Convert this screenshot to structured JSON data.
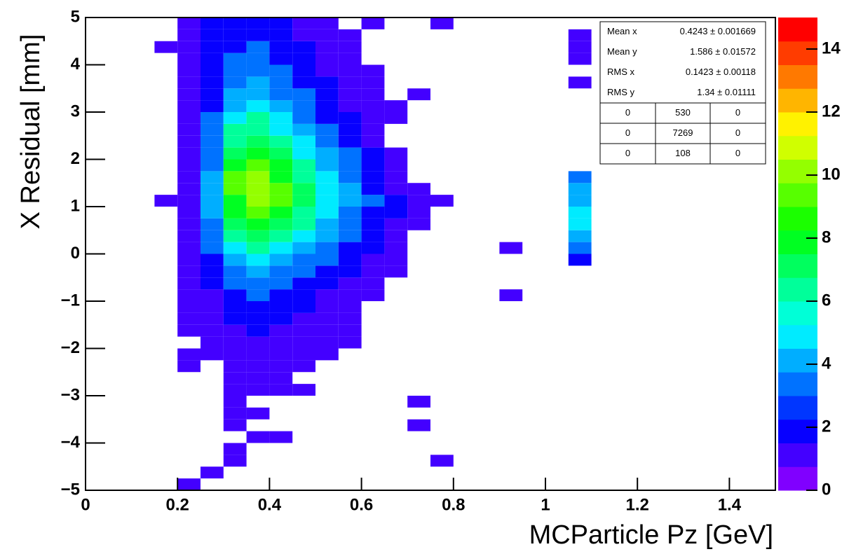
{
  "chart_data": {
    "type": "heatmap",
    "x_label": "MCParticle Pz [GeV]",
    "y_label": "X Residual [mm]",
    "xlim": [
      0,
      1.5
    ],
    "xticks": [
      0,
      0.2,
      0.4,
      0.6,
      0.8,
      1,
      1.2,
      1.4
    ],
    "ylim": [
      -5,
      5
    ],
    "yticks": [
      {
        "value": -5,
        "label": "−5"
      },
      {
        "value": -4,
        "label": "−4"
      },
      {
        "value": -3,
        "label": "−3"
      },
      {
        "value": -2,
        "label": "−2"
      },
      {
        "value": -1,
        "label": "−1"
      },
      0,
      1,
      2,
      3,
      4,
      5
    ],
    "zlim": [
      0,
      15
    ],
    "zticks": [
      0,
      2,
      4,
      6,
      8,
      10,
      12,
      14
    ],
    "xbins": [
      0.1,
      0.15,
      0.2,
      0.25,
      0.3,
      0.35,
      0.4,
      0.45,
      0.5,
      0.55,
      0.6,
      0.65,
      0.7,
      0.75,
      0.8,
      0.85,
      0.9,
      0.95,
      1.0,
      1.05,
      1.1
    ],
    "ybins": [
      -5,
      -4.75,
      -4.5,
      -4.25,
      -4,
      -3.75,
      -3.5,
      -3.25,
      -3,
      -2.75,
      -2.5,
      -2.25,
      -2,
      -1.75,
      -1.5,
      -1.25,
      -1,
      -0.75,
      -0.5,
      -0.25,
      0,
      0.25,
      0.5,
      0.75,
      1,
      1.25,
      1.5,
      1.75,
      2,
      2.25,
      2.5,
      2.75,
      3,
      3.25,
      3.5,
      3.75,
      4,
      4.25,
      4.5,
      4.75,
      5
    ],
    "z": [
      [
        0,
        0,
        1,
        0,
        0,
        0,
        0,
        0,
        0,
        0,
        0,
        0,
        0,
        0,
        0,
        0,
        0,
        0,
        0,
        0
      ],
      [
        0,
        0,
        0,
        1,
        0,
        0,
        0,
        0,
        0,
        0,
        0,
        0,
        0,
        0,
        0,
        0,
        0,
        0,
        0,
        0
      ],
      [
        0,
        0,
        0,
        0,
        1,
        0,
        0,
        0,
        0,
        0,
        0,
        0,
        0,
        1,
        0,
        0,
        0,
        0,
        0,
        0
      ],
      [
        0,
        0,
        0,
        0,
        1,
        0,
        0,
        0,
        0,
        0,
        0,
        0,
        0,
        0,
        0,
        0,
        0,
        0,
        0,
        0
      ],
      [
        0,
        0,
        0,
        0,
        0,
        1,
        1,
        0,
        0,
        0,
        0,
        0,
        0,
        0,
        0,
        0,
        0,
        0,
        0,
        0
      ],
      [
        0,
        0,
        0,
        0,
        1,
        0,
        0,
        0,
        0,
        0,
        0,
        0,
        1,
        0,
        0,
        0,
        0,
        0,
        0,
        0
      ],
      [
        0,
        0,
        0,
        0,
        1,
        1,
        0,
        0,
        0,
        0,
        0,
        0,
        0,
        0,
        0,
        0,
        0,
        0,
        0,
        0
      ],
      [
        0,
        0,
        0,
        0,
        1,
        0,
        0,
        0,
        0,
        0,
        0,
        0,
        1,
        0,
        0,
        0,
        0,
        0,
        0,
        0
      ],
      [
        0,
        0,
        0,
        0,
        1,
        1,
        1,
        1,
        0,
        0,
        0,
        0,
        0,
        0,
        0,
        0,
        0,
        0,
        0,
        0
      ],
      [
        0,
        0,
        0,
        0,
        1,
        1,
        1,
        0,
        0,
        0,
        0,
        0,
        0,
        0,
        0,
        0,
        0,
        0,
        0,
        0
      ],
      [
        0,
        0,
        1,
        0,
        1,
        1,
        1,
        1,
        0,
        0,
        0,
        0,
        0,
        0,
        0,
        0,
        0,
        0,
        0,
        0
      ],
      [
        0,
        0,
        1,
        1,
        1,
        1,
        1,
        1,
        1,
        0,
        0,
        0,
        0,
        0,
        0,
        0,
        0,
        0,
        0,
        0
      ],
      [
        0,
        0,
        0,
        1,
        1,
        1,
        1,
        1,
        1,
        1,
        0,
        0,
        0,
        0,
        0,
        0,
        0,
        0,
        0,
        0
      ],
      [
        0,
        0,
        1,
        1,
        1,
        2,
        1,
        1,
        1,
        1,
        0,
        0,
        0,
        0,
        0,
        0,
        0,
        0,
        0,
        0
      ],
      [
        0,
        0,
        1,
        1,
        2,
        2,
        2,
        1,
        1,
        1,
        0,
        0,
        0,
        0,
        0,
        0,
        0,
        0,
        0,
        0
      ],
      [
        0,
        0,
        1,
        1,
        2,
        2,
        2,
        2,
        1,
        1,
        0,
        0,
        0,
        0,
        0,
        0,
        0,
        0,
        0,
        0
      ],
      [
        0,
        0,
        1,
        1,
        2,
        3,
        2,
        2,
        1,
        1,
        1,
        0,
        0,
        0,
        0,
        0,
        1,
        0,
        0,
        0
      ],
      [
        0,
        0,
        1,
        2,
        3,
        3,
        3,
        2,
        2,
        1,
        1,
        0,
        0,
        0,
        0,
        0,
        0,
        0,
        0,
        0
      ],
      [
        0,
        0,
        1,
        2,
        3,
        4,
        3,
        3,
        2,
        2,
        1,
        1,
        0,
        0,
        0,
        0,
        0,
        0,
        0,
        0
      ],
      [
        0,
        0,
        1,
        2,
        4,
        5,
        4,
        3,
        3,
        2,
        1,
        1,
        0,
        0,
        0,
        0,
        0,
        0,
        0,
        2
      ],
      [
        0,
        0,
        1,
        3,
        5,
        6,
        5,
        4,
        3,
        2,
        2,
        1,
        0,
        0,
        0,
        0,
        1,
        0,
        0,
        3
      ],
      [
        0,
        0,
        1,
        3,
        6,
        7,
        6,
        5,
        4,
        3,
        2,
        1,
        0,
        0,
        0,
        0,
        0,
        0,
        0,
        4
      ],
      [
        0,
        0,
        1,
        3,
        7,
        8,
        7,
        6,
        4,
        3,
        2,
        1,
        1,
        0,
        0,
        0,
        0,
        0,
        0,
        5
      ],
      [
        0,
        0,
        1,
        4,
        8,
        9,
        8,
        6,
        5,
        3,
        2,
        2,
        1,
        0,
        0,
        0,
        0,
        0,
        0,
        5
      ],
      [
        0,
        1,
        1,
        4,
        8,
        10,
        9,
        7,
        5,
        4,
        3,
        2,
        1,
        1,
        0,
        0,
        0,
        0,
        0,
        4
      ],
      [
        0,
        0,
        1,
        4,
        9,
        10,
        9,
        7,
        5,
        4,
        2,
        1,
        1,
        0,
        0,
        0,
        0,
        0,
        0,
        4
      ],
      [
        0,
        0,
        1,
        4,
        9,
        10,
        8,
        6,
        5,
        3,
        2,
        1,
        0,
        0,
        0,
        0,
        0,
        0,
        0,
        3
      ],
      [
        0,
        0,
        1,
        3,
        8,
        9,
        8,
        6,
        4,
        3,
        2,
        1,
        0,
        0,
        0,
        0,
        0,
        0,
        0,
        0
      ],
      [
        0,
        0,
        1,
        3,
        7,
        8,
        7,
        5,
        4,
        3,
        2,
        1,
        0,
        0,
        0,
        0,
        0,
        0,
        0,
        0
      ],
      [
        0,
        0,
        1,
        3,
        6,
        7,
        6,
        5,
        3,
        2,
        1,
        0,
        0,
        0,
        0,
        0,
        0,
        0,
        0,
        0
      ],
      [
        0,
        0,
        1,
        3,
        6,
        6,
        5,
        4,
        3,
        2,
        1,
        0,
        0,
        0,
        0,
        0,
        0,
        0,
        0,
        0
      ],
      [
        0,
        0,
        1,
        3,
        5,
        6,
        5,
        3,
        2,
        2,
        1,
        1,
        0,
        0,
        0,
        0,
        0,
        0,
        0,
        0
      ],
      [
        0,
        0,
        1,
        2,
        4,
        5,
        4,
        3,
        2,
        1,
        1,
        1,
        0,
        0,
        0,
        0,
        0,
        0,
        0,
        0
      ],
      [
        0,
        0,
        1,
        2,
        4,
        4,
        3,
        3,
        2,
        1,
        1,
        0,
        1,
        0,
        0,
        0,
        0,
        0,
        0,
        0
      ],
      [
        0,
        0,
        1,
        2,
        3,
        4,
        3,
        2,
        2,
        1,
        1,
        0,
        0,
        0,
        0,
        0,
        0,
        0,
        0,
        1
      ],
      [
        0,
        0,
        1,
        2,
        3,
        3,
        3,
        2,
        1,
        1,
        1,
        0,
        0,
        0,
        0,
        0,
        0,
        0,
        0,
        0
      ],
      [
        0,
        0,
        1,
        2,
        3,
        3,
        2,
        2,
        1,
        1,
        0,
        0,
        0,
        0,
        0,
        0,
        0,
        0,
        0,
        1
      ],
      [
        0,
        1,
        1,
        2,
        2,
        3,
        2,
        2,
        1,
        1,
        0,
        0,
        0,
        0,
        0,
        0,
        0,
        0,
        0,
        1
      ],
      [
        0,
        0,
        1,
        2,
        2,
        2,
        2,
        1,
        1,
        1,
        0,
        0,
        0,
        0,
        0,
        0,
        0,
        0,
        0,
        1
      ],
      [
        0,
        0,
        1,
        2,
        2,
        2,
        2,
        1,
        1,
        0,
        1,
        0,
        0,
        1,
        0,
        0,
        0,
        0,
        0,
        0
      ]
    ],
    "stats": [
      {
        "label": "Mean x",
        "value": "0.4243 ± 0.001669"
      },
      {
        "label": "Mean y",
        "value": "1.586 ± 0.01572"
      },
      {
        "label": "RMS x",
        "value": "0.1423 ± 0.00118"
      },
      {
        "label": "RMS y",
        "value": "1.34 ± 0.01111"
      }
    ],
    "overflow_table": [
      [
        "0",
        "530",
        "0"
      ],
      [
        "0",
        "7269",
        "0"
      ],
      [
        "0",
        "108",
        "0"
      ]
    ]
  }
}
